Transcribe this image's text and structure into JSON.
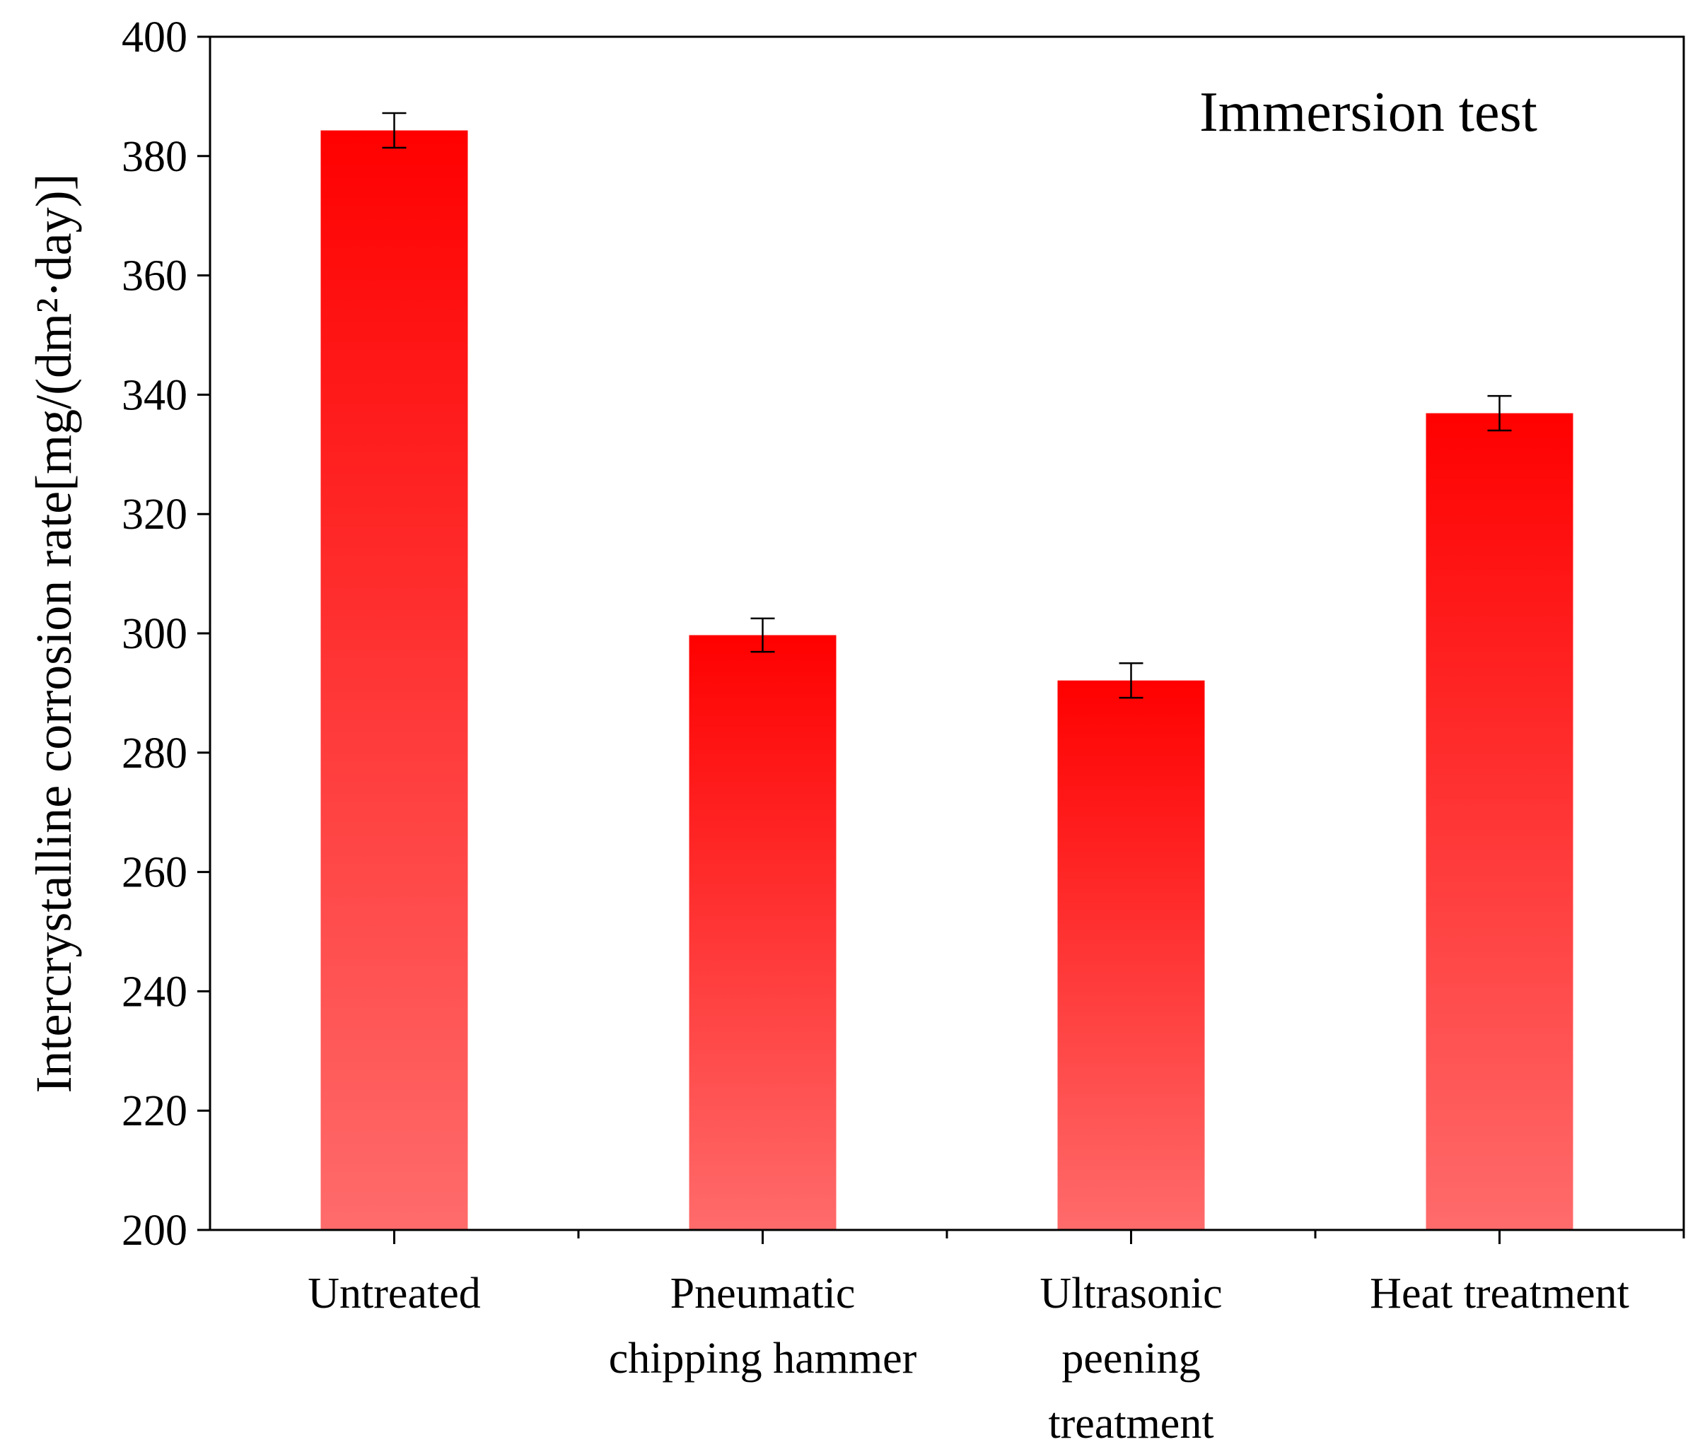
{
  "chart_data": {
    "type": "bar",
    "annotation": "Immersion test",
    "y_label": "Intercrystalline corrosion rate[mg/(dm²·day)]",
    "categories": [
      "Untreated",
      "Pneumatic\nchipping hammer",
      "Ultrasonic\npeening\ntreatment",
      "Heat treatment"
    ],
    "values": [
      384.3,
      299.7,
      292.1,
      336.9
    ],
    "errors": [
      2.9,
      2.8,
      2.9,
      2.9
    ],
    "color": "#ff0000",
    "ylim": [
      200,
      400
    ],
    "yticks": [
      200,
      220,
      240,
      260,
      280,
      300,
      320,
      340,
      360,
      380,
      400
    ],
    "grid": false
  }
}
